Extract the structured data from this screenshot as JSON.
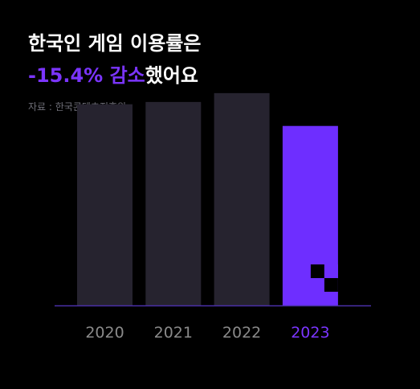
{
  "headline": {
    "line1": "한국인 게임 이용률은",
    "highlight": "-15.4% 감소",
    "suffix": "했어요"
  },
  "source": "자료 : 한국콘텐츠진흥원",
  "colors": {
    "background": "#000000",
    "bar": "#26232f",
    "highlight_bar": "#6e2eff",
    "accent_text": "#7b35ff",
    "axis_label": "#8a8a8a",
    "baseline": "#4a2fa8"
  },
  "chart_data": {
    "type": "bar",
    "categories": [
      "2020",
      "2021",
      "2022",
      "2023"
    ],
    "values": [
      70.5,
      71.3,
      74.4,
      62.9
    ],
    "highlight_index": 3,
    "ylim": [
      0,
      80
    ],
    "grid": false,
    "title": "",
    "xlabel": "",
    "ylabel": ""
  }
}
